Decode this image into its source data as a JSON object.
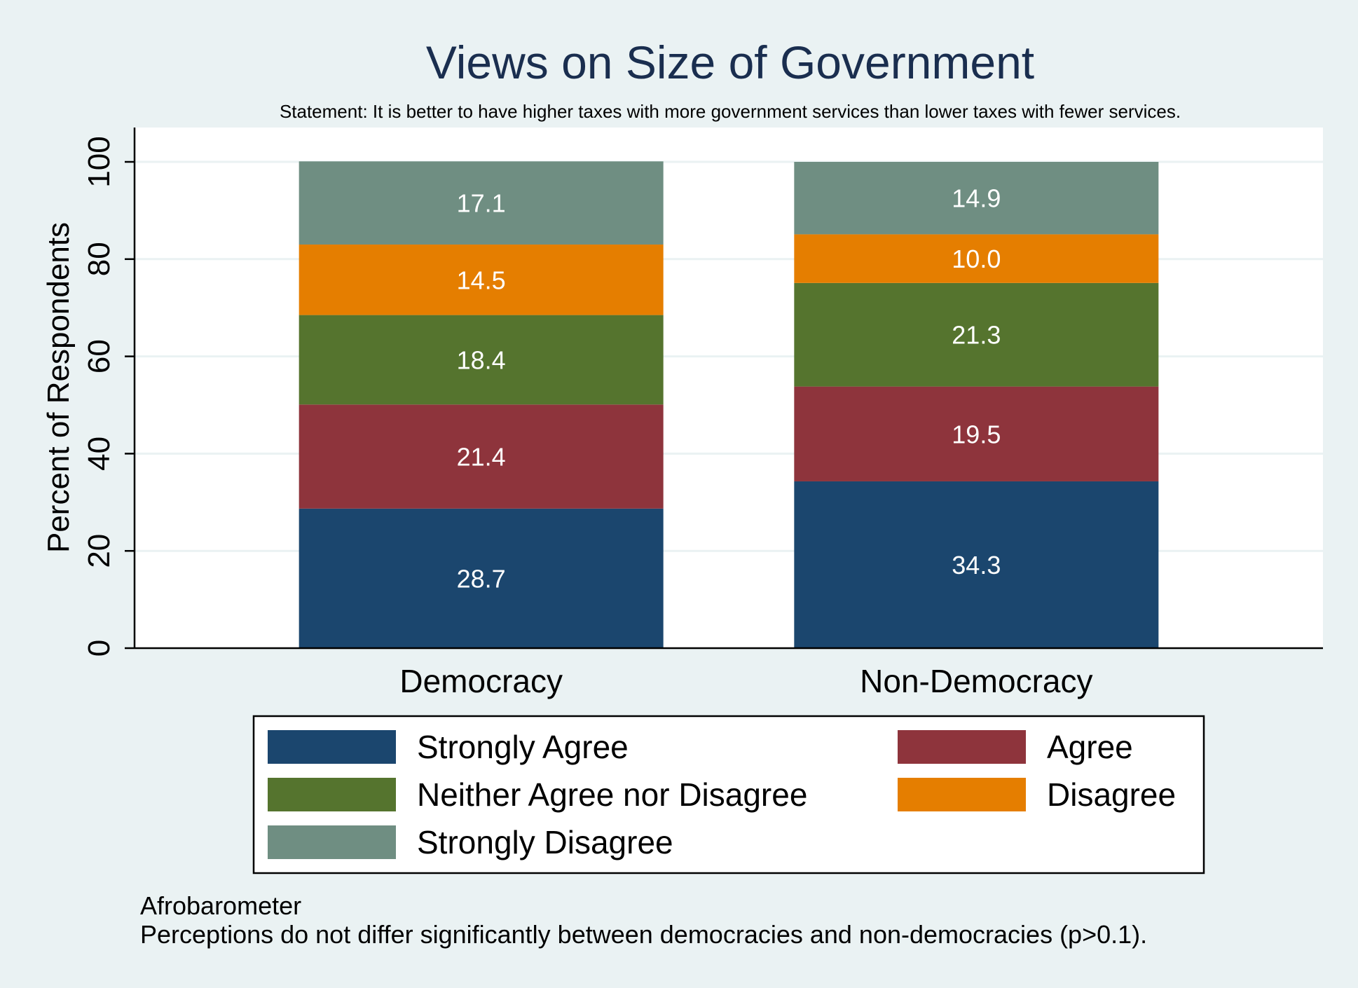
{
  "chart_data": {
    "type": "bar",
    "stacked": true,
    "title": "Views on Size of Government",
    "subtitle": "Statement: It is better to have higher taxes with more government services than lower taxes with fewer services.",
    "ylabel": "Percent of Respondents",
    "ylim": [
      0,
      100
    ],
    "yticks": [
      "0",
      "20",
      "40",
      "60",
      "80",
      "100"
    ],
    "grid": true,
    "categories": [
      "Democracy",
      "Non-Democracy"
    ],
    "series": [
      {
        "name": "Strongly Agree",
        "color": "#1b466e",
        "values": [
          28.7,
          34.3
        ],
        "labels": [
          "28.7",
          "34.3"
        ]
      },
      {
        "name": "Agree",
        "color": "#8e343c",
        "values": [
          21.4,
          19.5
        ],
        "labels": [
          "21.4",
          "19.5"
        ]
      },
      {
        "name": "Neither Agree nor Disagree",
        "color": "#55742e",
        "values": [
          18.4,
          21.3
        ],
        "labels": [
          "18.4",
          "21.3"
        ]
      },
      {
        "name": "Disagree",
        "color": "#e57e00",
        "values": [
          14.5,
          10.0
        ],
        "labels": [
          "14.5",
          "10.0"
        ]
      },
      {
        "name": "Strongly Disagree",
        "color": "#6f8e82",
        "values": [
          17.1,
          14.9
        ],
        "labels": [
          "17.1",
          "14.9"
        ]
      }
    ],
    "legend_position": "bottom",
    "notes": [
      "Afrobarometer",
      "Perceptions do not differ significantly between democracies and non-democracies (p>0.1)."
    ]
  }
}
